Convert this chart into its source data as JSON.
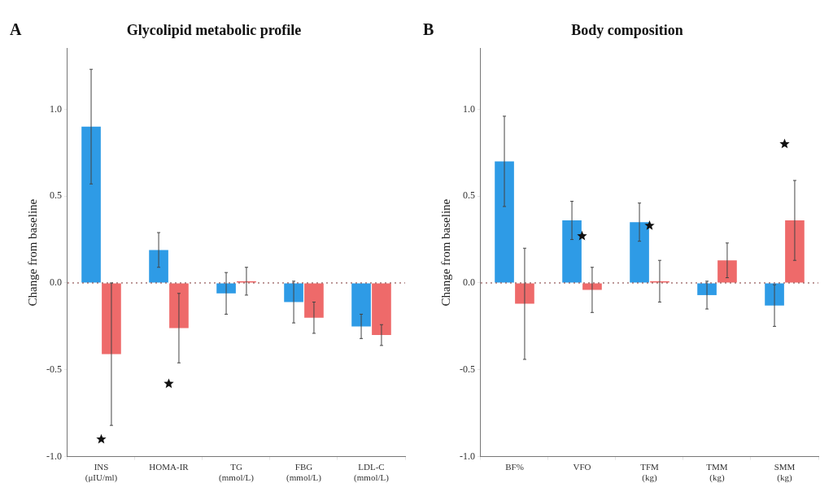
{
  "chart_data": [
    {
      "type": "bar",
      "title": "Glycolipid metabolic profile",
      "ylabel": "Change from baseline",
      "categories": [
        "INS (μIU/ml)",
        "HOMA-IR",
        "TG (mmol/L)",
        "FBG (mmol/L)",
        "LDL-C (mmol/L)"
      ],
      "series": [
        {
          "color": "#2e9be6",
          "values": [
            0.9,
            0.19,
            -0.06,
            -0.11,
            -0.25
          ],
          "errors": [
            0.33,
            0.1,
            0.12,
            0.12,
            0.07
          ]
        },
        {
          "color": "#ee6a6a",
          "values": [
            -0.41,
            -0.26,
            0.01,
            -0.2,
            -0.3
          ],
          "errors": [
            0.41,
            0.2,
            0.08,
            0.09,
            0.06
          ]
        },
        {
          "type": "scatter",
          "color": "#111111",
          "marker": "star",
          "x": [
            "INS (μIU/ml)",
            "HOMA-IR"
          ],
          "values": [
            -0.9,
            -0.58
          ]
        }
      ],
      "ylim": [
        -1,
        1.35
      ],
      "yticks": [
        {
          "value": -1,
          "label": "-1.0"
        },
        {
          "value": -0.5,
          "label": "-0.5"
        },
        {
          "value": 0,
          "label": "0.0"
        },
        {
          "value": 0.5,
          "label": "0.5"
        },
        {
          "value": 1,
          "label": "1.0"
        }
      ],
      "ref_lines": [
        {
          "axis": "y",
          "value": 0,
          "color": "#7a3030",
          "line_style": "dotted"
        }
      ],
      "annotations": [
        "A"
      ],
      "grid": false,
      "legend": false
    },
    {
      "type": "bar",
      "title": "Body composition",
      "ylabel": "Change from baseline",
      "categories": [
        "BF%",
        "VFO",
        "TFM (kg)",
        "TMM (kg)",
        "SMM (kg)"
      ],
      "series": [
        {
          "color": "#2e9be6",
          "values": [
            0.7,
            0.36,
            0.35,
            -0.07,
            -0.13
          ],
          "errors": [
            0.26,
            0.11,
            0.11,
            0.08,
            0.12
          ]
        },
        {
          "color": "#ee6a6a",
          "values": [
            -0.12,
            -0.04,
            0.01,
            0.13,
            0.36
          ],
          "errors": [
            0.32,
            0.13,
            0.12,
            0.1,
            0.23
          ]
        },
        {
          "type": "scatter",
          "color": "#111111",
          "marker": "star",
          "x": [
            "VFO",
            "TFM (kg)",
            "SMM (kg)"
          ],
          "values": [
            0.27,
            0.33,
            0.8
          ]
        }
      ],
      "ylim": [
        -1,
        1.35
      ],
      "yticks": [
        {
          "value": -1,
          "label": "-1.0"
        },
        {
          "value": -0.5,
          "label": "-0.5"
        },
        {
          "value": 0,
          "label": "0.0"
        },
        {
          "value": 0.5,
          "label": "0.5"
        },
        {
          "value": 1,
          "label": "1.0"
        }
      ],
      "ref_lines": [
        {
          "axis": "y",
          "value": 0,
          "color": "#7a3030",
          "line_style": "dotted"
        }
      ],
      "annotations": [
        "B"
      ],
      "grid": false,
      "legend": false
    }
  ]
}
